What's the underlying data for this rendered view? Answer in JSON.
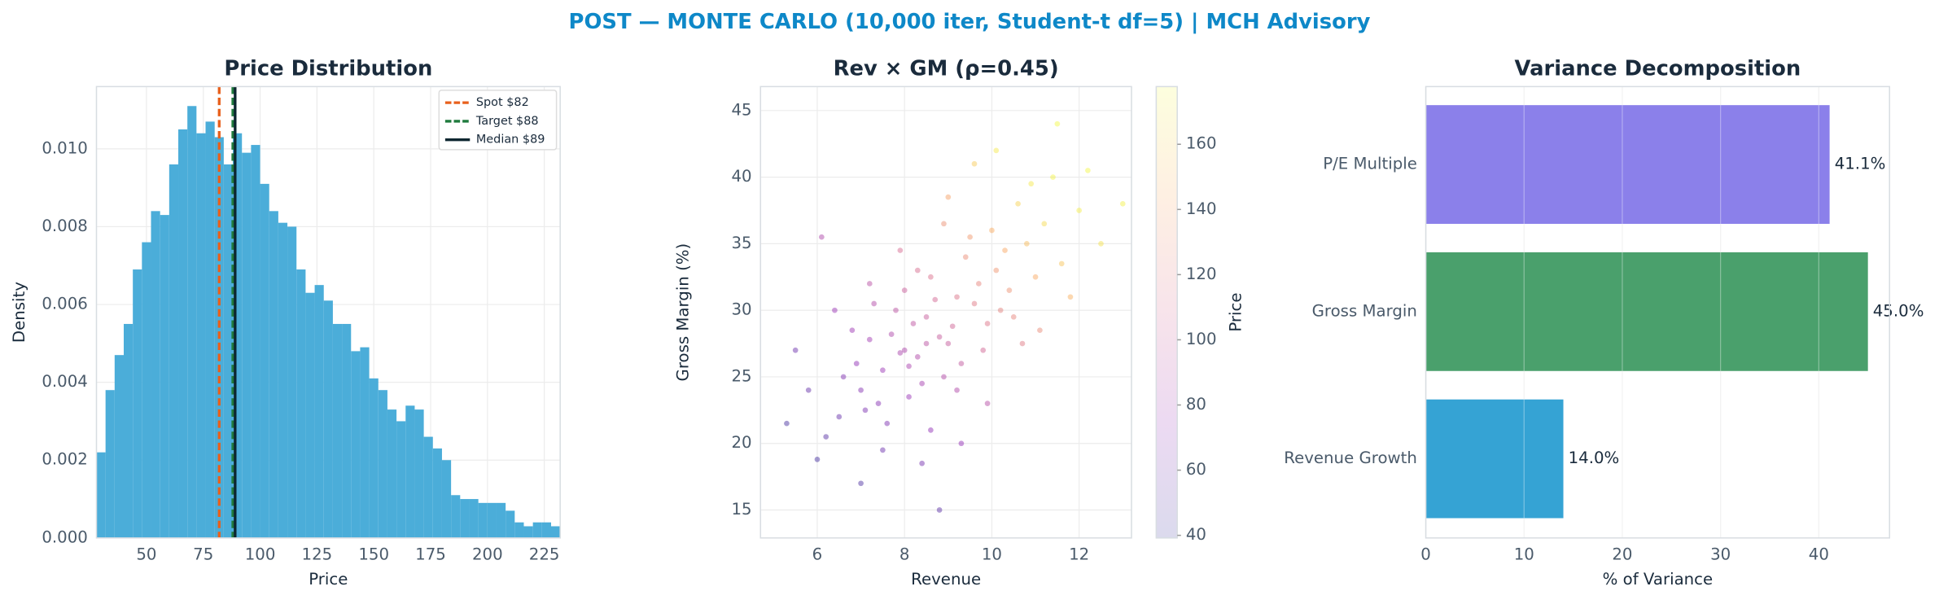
{
  "title": "POST — MONTE CARLO (10,000 iter, Student-t df=5) | MCH Advisory",
  "chart_data": [
    {
      "type": "histogram",
      "title": "Price Distribution",
      "x_label": "Price",
      "y_label": "Density",
      "color": "#4badd9",
      "bins": [
        28,
        32,
        36,
        40,
        44,
        48,
        52,
        56,
        60,
        64,
        68,
        72,
        76,
        80,
        84,
        88,
        92,
        96,
        100,
        104,
        108,
        112,
        116,
        120,
        124,
        128,
        132,
        136,
        140,
        144,
        148,
        152,
        156,
        160,
        164,
        168,
        172,
        176,
        180,
        184,
        188,
        192,
        196,
        200,
        204,
        208,
        212,
        216,
        220,
        224,
        228,
        232
      ],
      "values": [
        0.0022,
        0.0038,
        0.0047,
        0.0055,
        0.0069,
        0.0076,
        0.0084,
        0.0083,
        0.0096,
        0.0105,
        0.0111,
        0.0104,
        0.0107,
        0.0103,
        0.0096,
        0.0104,
        0.0099,
        0.0101,
        0.0091,
        0.0084,
        0.0081,
        0.008,
        0.0069,
        0.0063,
        0.0065,
        0.0061,
        0.0055,
        0.0055,
        0.0048,
        0.0049,
        0.0041,
        0.0038,
        0.0033,
        0.003,
        0.0034,
        0.0033,
        0.0026,
        0.0023,
        0.002,
        0.0011,
        0.001,
        0.001,
        0.0009,
        0.0009,
        0.0009,
        0.0007,
        0.0004,
        0.0003,
        0.0004,
        0.0004,
        0.0003
      ],
      "vlines": [
        {
          "name": "Spot $82",
          "value": 82,
          "color": "#e8601c",
          "dashed": true
        },
        {
          "name": "Target $88",
          "value": 88,
          "color": "#1f7a3d",
          "dashed": true
        },
        {
          "name": "Median $89",
          "value": 89,
          "color": "#0d2630",
          "dashed": false
        }
      ],
      "legend": "upper right",
      "xlim": [
        28,
        232
      ],
      "xticks": [
        50,
        75,
        100,
        125,
        150,
        175,
        200,
        225
      ],
      "ylim": [
        0,
        0.0116
      ],
      "yticks": [
        {
          "value": 0,
          "label": "0.000"
        },
        {
          "value": 0.002,
          "label": "0.002"
        },
        {
          "value": 0.004,
          "label": "0.004"
        },
        {
          "value": 0.006,
          "label": "0.006"
        },
        {
          "value": 0.008,
          "label": "0.008"
        },
        {
          "value": 0.01,
          "label": "0.010"
        }
      ],
      "grid": true
    },
    {
      "type": "scatter",
      "title": "Rev × GM (ρ=0.45)",
      "x_label": "Revenue",
      "y_label": "Gross Margin (%)",
      "colorbar_label": "Price",
      "colormap": "plasma",
      "x": [
        8.0,
        8.5,
        9.2,
        7.5,
        10.1,
        8.8,
        7.0,
        9.6,
        8.3,
        10.8,
        6.5,
        7.8,
        9.0,
        11.2,
        8.1,
        9.9,
        7.2,
        8.6,
        10.4,
        6.9,
        9.4,
        8.2,
        7.6,
        10.0,
        8.9,
        11.6,
        7.3,
        9.1,
        8.4,
        10.6,
        6.2,
        7.9,
        9.7,
        8.7,
        12.0,
        7.4,
        9.3,
        10.3,
        8.0,
        6.8,
        9.8,
        11.0,
        7.1,
        8.5,
        10.9,
        5.8,
        9.5,
        8.3,
        7.7,
        10.5,
        6.0,
        8.9,
        11.4,
        7.5,
        9.2,
        12.5,
        8.1,
        10.2,
        6.6,
        9.0,
        7.9,
        11.8,
        8.6,
        5.3,
        10.7,
        9.6,
        7.2,
        12.2,
        8.4,
        6.4,
        9.9,
        11.1,
        7.0,
        10.1,
        5.5,
        13.0,
        8.8,
        6.1,
        11.5,
        9.3
      ],
      "y": [
        27.0,
        29.5,
        31.0,
        25.5,
        33.0,
        28.0,
        24.0,
        30.5,
        26.5,
        35.0,
        22.0,
        30.0,
        27.5,
        36.5,
        23.5,
        29.0,
        27.8,
        32.5,
        31.5,
        26.0,
        34.0,
        29.0,
        21.5,
        36.0,
        25.0,
        33.5,
        30.5,
        28.8,
        24.5,
        38.0,
        20.5,
        26.8,
        32.0,
        30.8,
        37.5,
        23.0,
        26.0,
        34.5,
        31.5,
        28.5,
        27.0,
        32.5,
        22.5,
        27.5,
        39.5,
        24.0,
        35.5,
        33.0,
        28.2,
        29.5,
        18.8,
        36.5,
        40.0,
        19.5,
        24.0,
        35.0,
        25.8,
        30.0,
        25.0,
        38.5,
        34.5,
        31.0,
        21.0,
        21.5,
        27.5,
        41.0,
        32.0,
        40.5,
        18.5,
        30.0,
        23.0,
        28.5,
        17.0,
        42.0,
        27.0,
        38.0,
        15.0,
        35.5,
        44.0,
        20.0
      ],
      "c": [
        86,
        100,
        114,
        77,
        133,
        99,
        67,
        117,
        88,
        151,
        57,
        94,
        99,
        164,
        76,
        115,
        80,
        112,
        131,
        72,
        128,
        95,
        65,
        144,
        89,
        155,
        89,
        105,
        82,
        161,
        51,
        85,
        124,
        107,
        172,
        68,
        97,
        142,
        101,
        78,
        106,
        143,
        64,
        94,
        170,
        56,
        135,
        110,
        87,
        124,
        45,
        130,
        175,
        59,
        88,
        168,
        84,
        122,
        66,
        139,
        109,
        146,
        72,
        46,
        118,
        157,
        92,
        176,
        62,
        77,
        91,
        127,
        48,
        170,
        59,
        174,
        53,
        87,
        177,
        74
      ],
      "xlim": [
        4.7,
        13.2
      ],
      "xticks": [
        6,
        8,
        10,
        12
      ],
      "ylim": [
        12.9,
        46.8
      ],
      "yticks": [
        15,
        20,
        25,
        30,
        35,
        40,
        45
      ],
      "clim": [
        39.2,
        177.7
      ],
      "cticks": [
        40,
        60,
        80,
        100,
        120,
        140,
        160
      ],
      "grid": true
    },
    {
      "type": "hbar",
      "title": "Variance Decomposition",
      "x_label": "% of Variance",
      "categories": [
        "P/E Multiple",
        "Gross Margin",
        "Revenue Growth"
      ],
      "values": [
        41.1,
        45.0,
        14.0
      ],
      "value_labels": [
        "41.1%",
        "45.0%",
        "14.0%"
      ],
      "colors": [
        "#8b80ea",
        "#4aa06c",
        "#35a3d4"
      ],
      "xlim": [
        0,
        47.2
      ],
      "xticks": [
        0,
        10,
        20,
        30,
        40
      ],
      "grid": true
    }
  ]
}
